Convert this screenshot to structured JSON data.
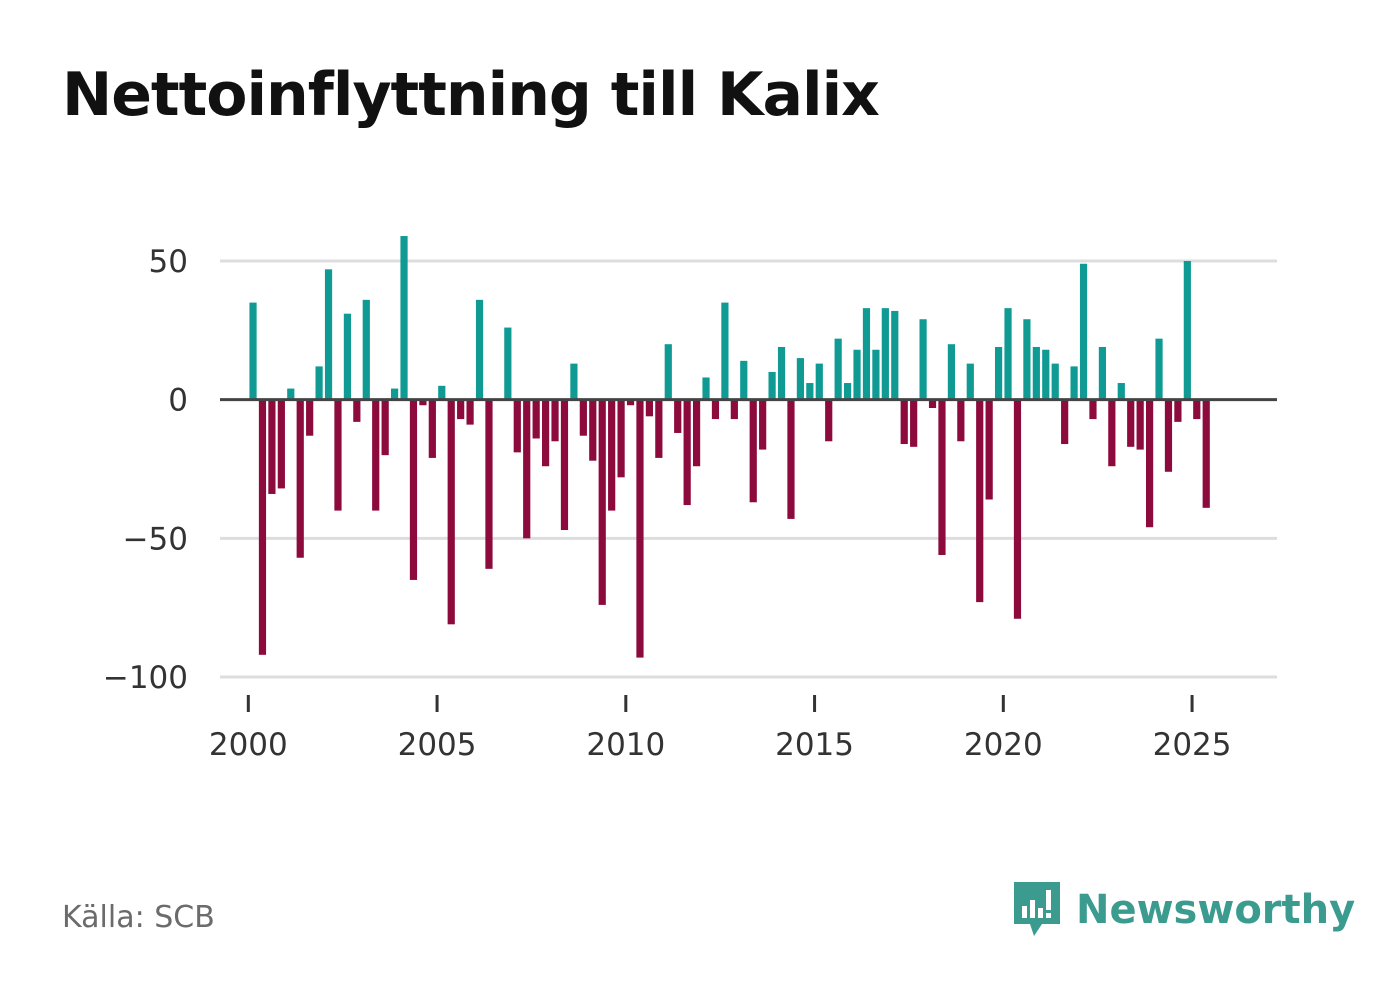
{
  "header": {
    "title": "Nettoinflyttning till Kalix"
  },
  "footer": {
    "source": "Källa: SCB",
    "brand": "Newsworthy"
  },
  "colors": {
    "positive": "#0f9b94",
    "negative": "#8c0a3c",
    "grid": "#dddddd",
    "zero": "#444444",
    "brand": "#3b9b8f"
  },
  "chart_data": {
    "type": "bar",
    "title": "Nettoinflyttning till Kalix",
    "xlabel": "",
    "ylabel": "",
    "ylim": [
      -100,
      50
    ],
    "xlim": [
      1999.25,
      2027.25
    ],
    "yticks": [
      50,
      0,
      -50,
      -100
    ],
    "ytick_labels": [
      "50",
      "0",
      "−50",
      "−100"
    ],
    "xticks": [
      2000,
      2005,
      2010,
      2015,
      2020,
      2025
    ],
    "xtick_labels": [
      "2000",
      "2005",
      "2010",
      "2015",
      "2020",
      "2025"
    ],
    "frequency": "quarterly",
    "start_year": 2000,
    "values": [
      35,
      -92,
      -34,
      -32,
      4,
      -57,
      -13,
      12,
      47,
      -40,
      31,
      -8,
      36,
      -40,
      -20,
      4,
      59,
      -65,
      -2,
      -21,
      5,
      -81,
      -7,
      -9,
      36,
      -61,
      0,
      26,
      -19,
      -50,
      -14,
      -24,
      -15,
      -47,
      13,
      -13,
      -22,
      -74,
      -40,
      -28,
      -2,
      -93,
      -6,
      -21,
      20,
      -12,
      -38,
      -24,
      8,
      -7,
      35,
      -7,
      14,
      -37,
      -18,
      10,
      19,
      -43,
      15,
      6,
      13,
      -15,
      22,
      6,
      18,
      33,
      18,
      33,
      32,
      -16,
      -17,
      29,
      -3,
      -56,
      20,
      -15,
      13,
      -73,
      -36,
      19,
      33,
      -79,
      29,
      19,
      18,
      13,
      -16,
      12,
      49,
      -7,
      19,
      -24,
      6,
      -17,
      -18,
      -46,
      22,
      -26,
      -8,
      50,
      -7,
      -39
    ]
  }
}
